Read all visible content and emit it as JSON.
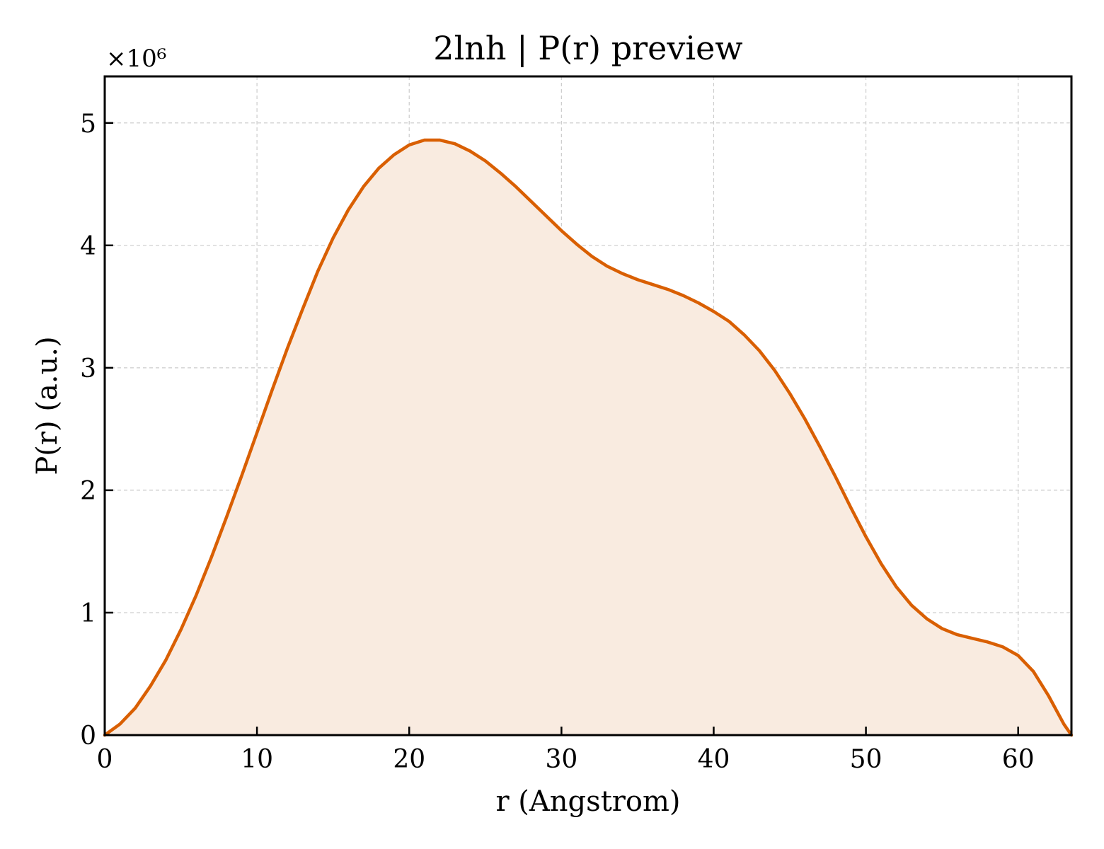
{
  "chart_data": {
    "type": "area",
    "title": "2lnh | P(r) preview",
    "xlabel": "r (Angstrom)",
    "ylabel": "P(r) (a.u.)",
    "y_multiplier": "×10⁶",
    "xlim": [
      0,
      63.5
    ],
    "ylim": [
      0,
      5.38
    ],
    "x_ticks": [
      0,
      10,
      20,
      30,
      40,
      50,
      60
    ],
    "x_tick_labels": [
      "0",
      "10",
      "20",
      "30",
      "40",
      "50",
      "60"
    ],
    "y_ticks": [
      0,
      1,
      2,
      3,
      4,
      5
    ],
    "y_tick_labels": [
      "0",
      "1",
      "2",
      "3",
      "4",
      "5"
    ],
    "grid": true,
    "line_color": "#d95f02",
    "fill_color": "#f9ebe0",
    "series": [
      {
        "x": [
          0,
          1,
          2,
          3,
          4,
          5,
          6,
          7,
          8,
          9,
          10,
          11,
          12,
          13,
          14,
          15,
          16,
          17,
          18,
          19,
          20,
          21,
          22,
          23,
          24,
          25,
          26,
          27,
          28,
          29,
          30,
          31,
          32,
          33,
          34,
          35,
          36,
          37,
          38,
          39,
          40,
          41,
          42,
          43,
          44,
          45,
          46,
          47,
          48,
          49,
          50,
          51,
          52,
          53,
          54,
          55,
          56,
          57,
          58,
          59,
          60,
          61,
          62,
          63,
          63.5
        ],
        "y": [
          0.0,
          0.09,
          0.22,
          0.4,
          0.61,
          0.86,
          1.14,
          1.45,
          1.78,
          2.12,
          2.47,
          2.82,
          3.16,
          3.48,
          3.79,
          4.06,
          4.29,
          4.48,
          4.63,
          4.74,
          4.82,
          4.86,
          4.86,
          4.83,
          4.77,
          4.69,
          4.59,
          4.48,
          4.36,
          4.24,
          4.12,
          4.01,
          3.91,
          3.83,
          3.77,
          3.72,
          3.68,
          3.64,
          3.59,
          3.53,
          3.46,
          3.38,
          3.27,
          3.14,
          2.98,
          2.79,
          2.58,
          2.35,
          2.11,
          1.86,
          1.62,
          1.4,
          1.21,
          1.06,
          0.95,
          0.87,
          0.82,
          0.79,
          0.76,
          0.72,
          0.65,
          0.52,
          0.32,
          0.09,
          0.0
        ]
      }
    ]
  }
}
